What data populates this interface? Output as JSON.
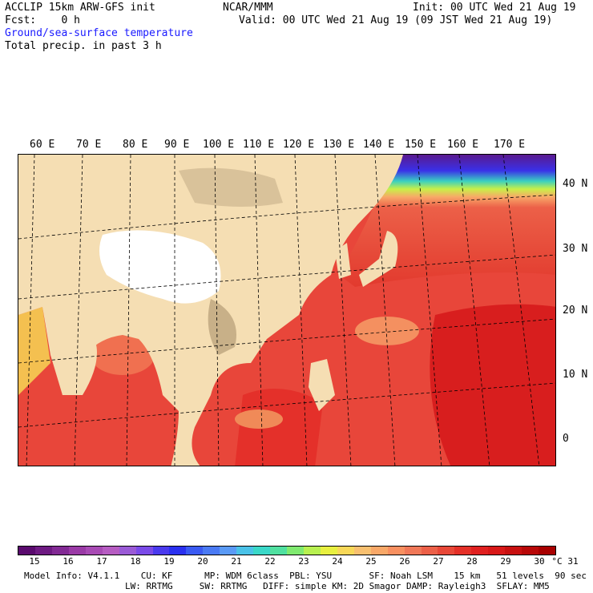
{
  "header": {
    "title": "ACCLIP 15km ARW-GFS init",
    "source": "NCAR/MMM",
    "init": "Init: 00 UTC Wed 21 Aug 19",
    "fcst": "Fcst:    0 h",
    "valid": "Valid: 00 UTC Wed 21 Aug 19 (09 JST Wed 21 Aug 19)",
    "field1": "Ground/sea-surface temperature",
    "field2": "Total precip. in past 3 h"
  },
  "map": {
    "lon_labels": [
      "60 E",
      "70 E",
      "80 E",
      "90 E",
      "100 E",
      "110 E",
      "120 E",
      "130 E",
      "140 E",
      "150 E",
      "160 E",
      "170 E"
    ],
    "lat_labels": [
      "40 N",
      "30 N",
      "20 N",
      "10 N",
      "0"
    ],
    "colors": {
      "land": "#f5deb3",
      "plateau_snow": "#ffffff",
      "warm_sea": "#e8433a",
      "hot_sea": "#dd2020",
      "cold_sea": "#6a1a9a"
    }
  },
  "colorbar": {
    "unit": "°C",
    "tick_labels": [
      "15",
      "16",
      "17",
      "18",
      "19",
      "20",
      "21",
      "22",
      "23",
      "24",
      "25",
      "26",
      "27",
      "28",
      "29",
      "30",
      "31"
    ],
    "colors": [
      "#5a0a6e",
      "#6e1a82",
      "#822a94",
      "#9a3aa6",
      "#a84ab4",
      "#b65cc2",
      "#9a5ad6",
      "#7a4ae8",
      "#4a3aee",
      "#2a30f0",
      "#3a5af2",
      "#4a7af4",
      "#5a9af6",
      "#4ac2e8",
      "#3ad8c8",
      "#50e0a0",
      "#80ea70",
      "#b8f050",
      "#e8f040",
      "#f8d858",
      "#f8c070",
      "#f8a868",
      "#f89060",
      "#f07858",
      "#ec6048",
      "#e84838",
      "#e43028",
      "#e02020",
      "#d81818",
      "#c81010",
      "#b80808",
      "#a80000"
    ]
  },
  "info": {
    "line1": "Model Info: V4.1.1    CU: KF      MP: WDM 6class  PBL: YSU       SF: Noah LSM    15 km   51 levels  90 sec",
    "line2": "LW: RRTMG     SW: RRTMG   DIFF: simple KM: 2D Smagor DAMP: Rayleigh3  SFLAY: MM5"
  }
}
